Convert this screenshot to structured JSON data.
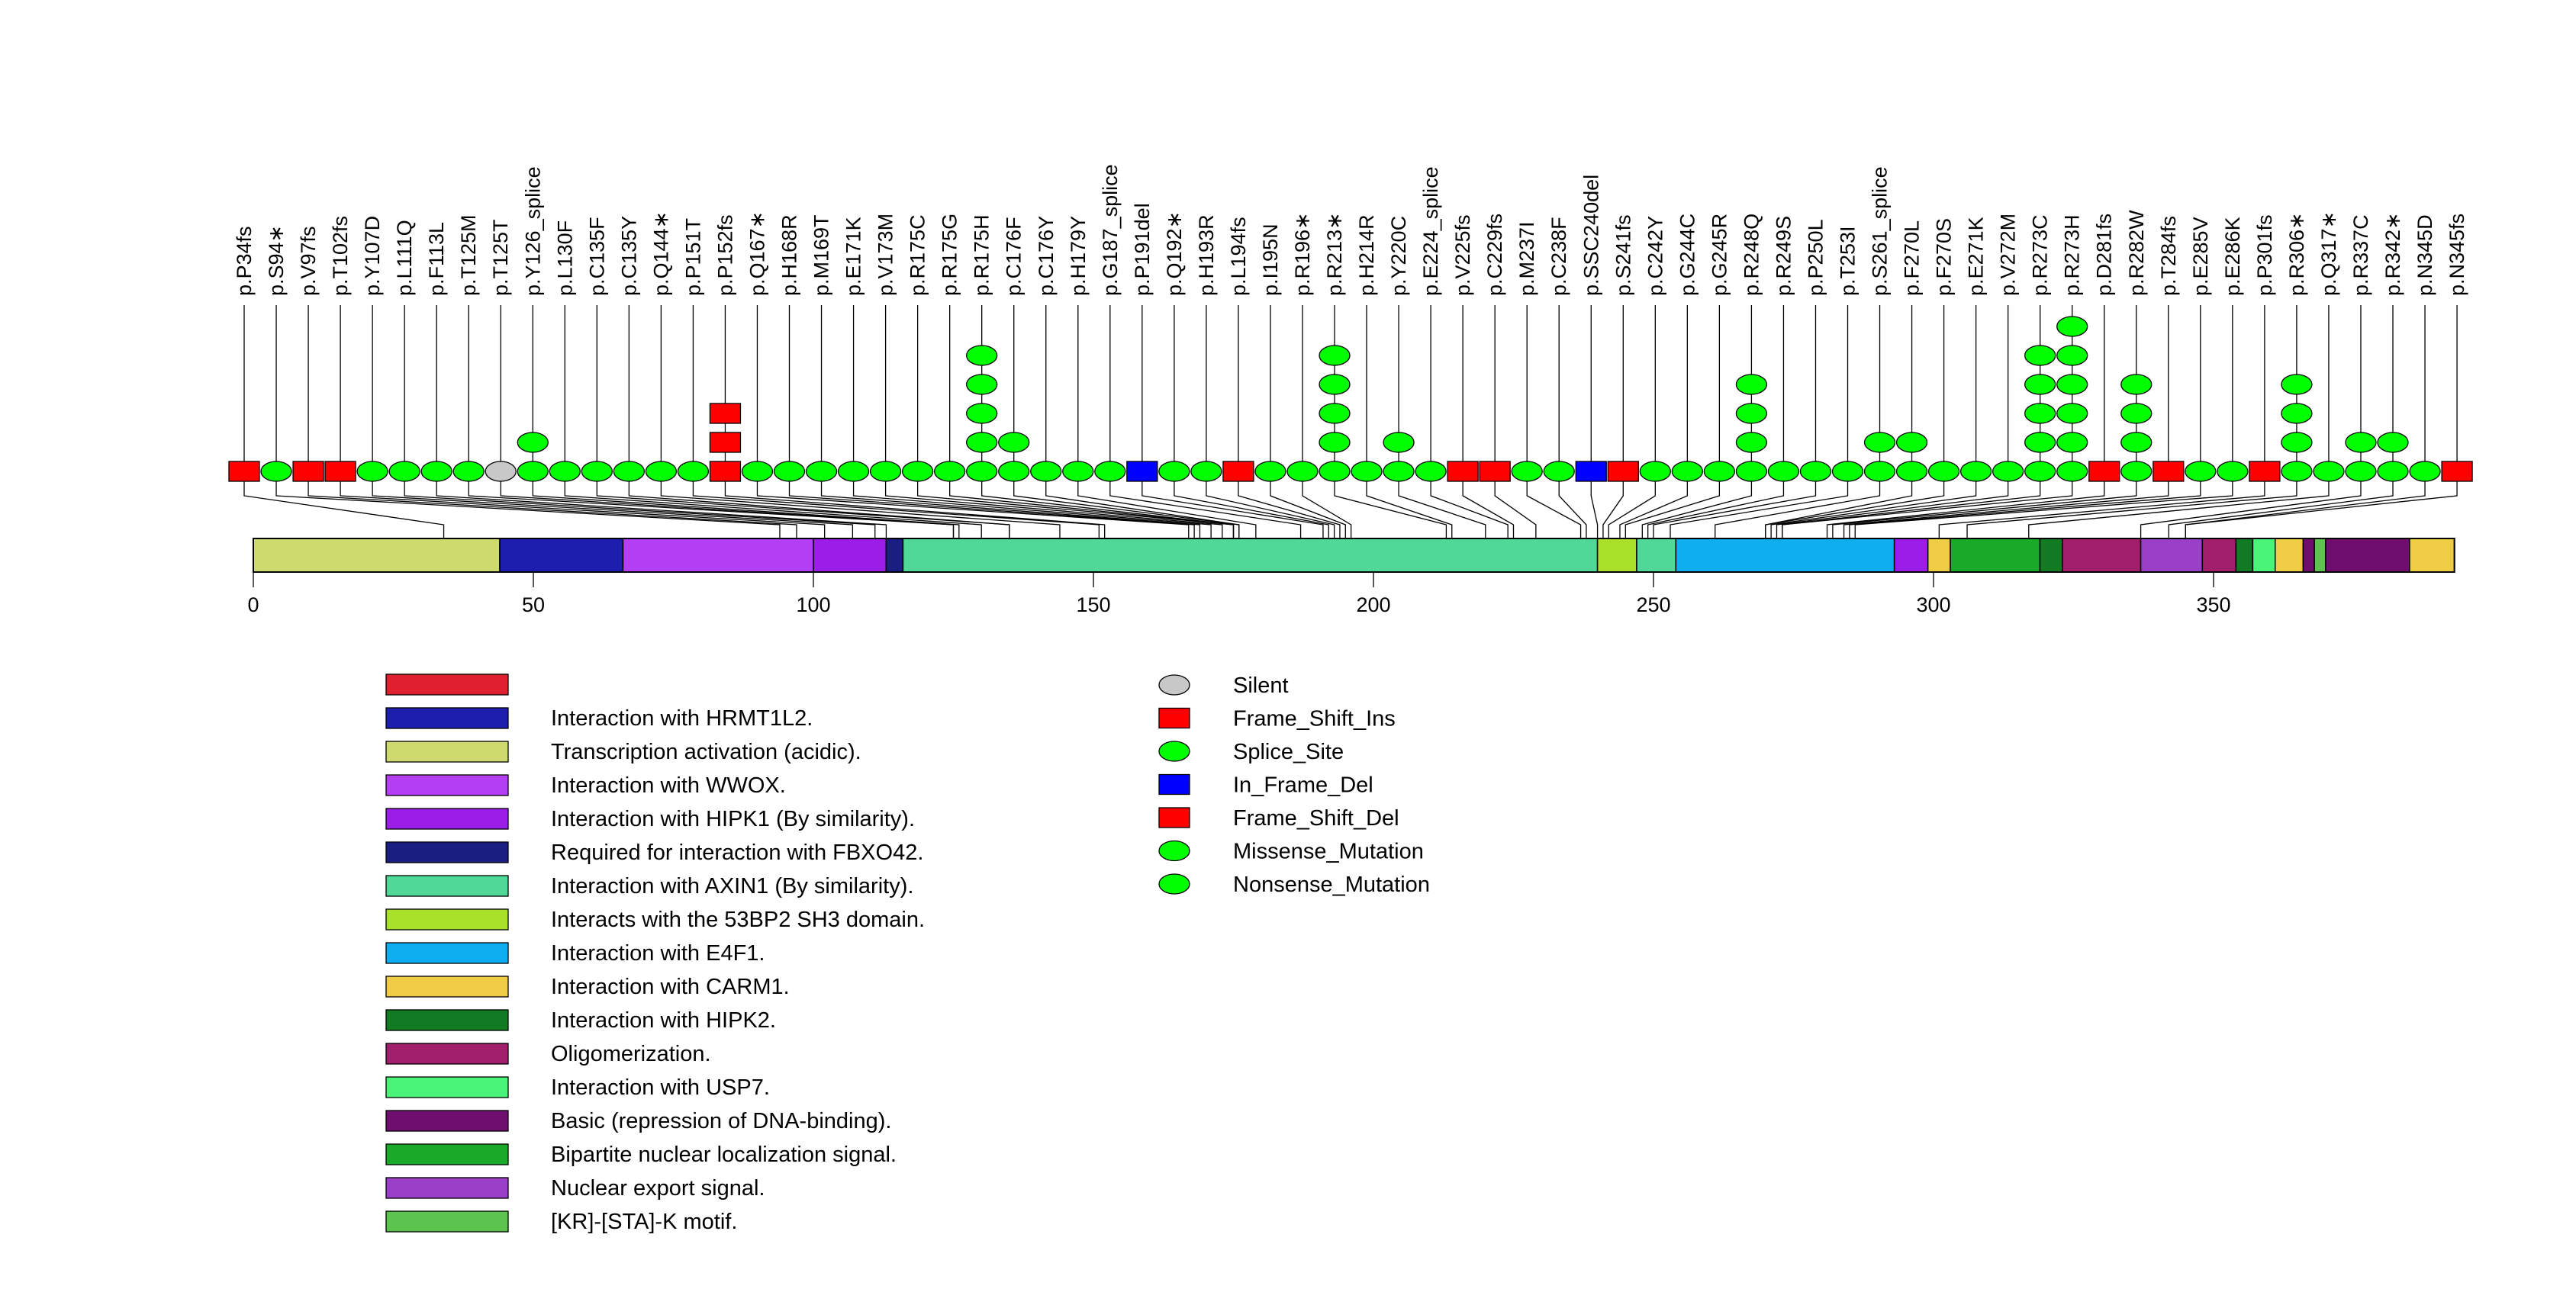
{
  "chart_data": {
    "type": "lollipop",
    "title": "",
    "protein_length": 393,
    "xlabel": "",
    "ylabel": "",
    "xlim": [
      0,
      393
    ],
    "x_ticks": [
      0,
      50,
      100,
      150,
      200,
      250,
      300,
      350
    ],
    "mutation_types": {
      "Silent": {
        "shape": "ellipse",
        "color": "#C8C8C8"
      },
      "Frame_Shift_Ins": {
        "shape": "square",
        "color": "#FF0000"
      },
      "Splice_Site": {
        "shape": "ellipse",
        "color": "#00FF00"
      },
      "In_Frame_Del": {
        "shape": "square",
        "color": "#0000FF"
      },
      "Frame_Shift_Del": {
        "shape": "square",
        "color": "#FF0000"
      },
      "Missense_Mutation": {
        "shape": "ellipse",
        "color": "#00FF00"
      },
      "Nonsense_Mutation": {
        "shape": "ellipse",
        "color": "#00FF00"
      }
    },
    "mutations": [
      {
        "label": "p.P34fs",
        "pos": 34,
        "type": "Frame_Shift_Del",
        "count": 1
      },
      {
        "label": "p.S94*",
        "pos": 94,
        "type": "Nonsense_Mutation",
        "count": 1
      },
      {
        "label": "p.V97fs",
        "pos": 97,
        "type": "Frame_Shift_Del",
        "count": 1
      },
      {
        "label": "p.T102fs",
        "pos": 102,
        "type": "Frame_Shift_Del",
        "count": 1
      },
      {
        "label": "p.Y107D",
        "pos": 107,
        "type": "Missense_Mutation",
        "count": 1
      },
      {
        "label": "p.L111Q",
        "pos": 111,
        "type": "Missense_Mutation",
        "count": 1
      },
      {
        "label": "p.F113L",
        "pos": 113,
        "type": "Missense_Mutation",
        "count": 1
      },
      {
        "label": "p.T125M",
        "pos": 125,
        "type": "Missense_Mutation",
        "count": 1
      },
      {
        "label": "p.T125T",
        "pos": 125,
        "type": "Silent",
        "count": 1
      },
      {
        "label": "p.Y126_splice",
        "pos": 126,
        "type": "Splice_Site",
        "count": 2
      },
      {
        "label": "p.L130F",
        "pos": 130,
        "type": "Missense_Mutation",
        "count": 1
      },
      {
        "label": "p.C135F",
        "pos": 135,
        "type": "Missense_Mutation",
        "count": 1
      },
      {
        "label": "p.C135Y",
        "pos": 135,
        "type": "Missense_Mutation",
        "count": 1
      },
      {
        "label": "p.Q144*",
        "pos": 144,
        "type": "Nonsense_Mutation",
        "count": 1
      },
      {
        "label": "p.P151T",
        "pos": 151,
        "type": "Missense_Mutation",
        "count": 1
      },
      {
        "label": "p.P152fs",
        "pos": 152,
        "type": "Frame_Shift_Ins",
        "count": 3
      },
      {
        "label": "p.Q167*",
        "pos": 167,
        "type": "Nonsense_Mutation",
        "count": 1
      },
      {
        "label": "p.H168R",
        "pos": 168,
        "type": "Missense_Mutation",
        "count": 1
      },
      {
        "label": "p.M169T",
        "pos": 169,
        "type": "Missense_Mutation",
        "count": 1
      },
      {
        "label": "p.E171K",
        "pos": 171,
        "type": "Missense_Mutation",
        "count": 1
      },
      {
        "label": "p.V173M",
        "pos": 173,
        "type": "Missense_Mutation",
        "count": 1
      },
      {
        "label": "p.R175C",
        "pos": 175,
        "type": "Missense_Mutation",
        "count": 1
      },
      {
        "label": "p.R175G",
        "pos": 175,
        "type": "Missense_Mutation",
        "count": 1
      },
      {
        "label": "p.R175H",
        "pos": 175,
        "type": "Missense_Mutation",
        "count": 5
      },
      {
        "label": "p.C176F",
        "pos": 176,
        "type": "Missense_Mutation",
        "count": 2
      },
      {
        "label": "p.C176Y",
        "pos": 176,
        "type": "Missense_Mutation",
        "count": 1
      },
      {
        "label": "p.H179Y",
        "pos": 179,
        "type": "Missense_Mutation",
        "count": 1
      },
      {
        "label": "p.G187_splice",
        "pos": 187,
        "type": "Splice_Site",
        "count": 1
      },
      {
        "label": "p.P191del",
        "pos": 191,
        "type": "In_Frame_Del",
        "count": 1
      },
      {
        "label": "p.Q192*",
        "pos": 192,
        "type": "Nonsense_Mutation",
        "count": 1
      },
      {
        "label": "p.H193R",
        "pos": 193,
        "type": "Missense_Mutation",
        "count": 1
      },
      {
        "label": "p.L194fs",
        "pos": 194,
        "type": "Frame_Shift_Del",
        "count": 1
      },
      {
        "label": "p.I195N",
        "pos": 195,
        "type": "Missense_Mutation",
        "count": 1
      },
      {
        "label": "p.R196*",
        "pos": 196,
        "type": "Nonsense_Mutation",
        "count": 1
      },
      {
        "label": "p.R213*",
        "pos": 213,
        "type": "Nonsense_Mutation",
        "count": 5
      },
      {
        "label": "p.H214R",
        "pos": 214,
        "type": "Missense_Mutation",
        "count": 1
      },
      {
        "label": "p.Y220C",
        "pos": 220,
        "type": "Missense_Mutation",
        "count": 2
      },
      {
        "label": "p.E224_splice",
        "pos": 224,
        "type": "Splice_Site",
        "count": 1
      },
      {
        "label": "p.V225fs",
        "pos": 225,
        "type": "Frame_Shift_Del",
        "count": 1
      },
      {
        "label": "p.C229fs",
        "pos": 229,
        "type": "Frame_Shift_Del",
        "count": 1
      },
      {
        "label": "p.M237I",
        "pos": 237,
        "type": "Missense_Mutation",
        "count": 1
      },
      {
        "label": "p.C238F",
        "pos": 238,
        "type": "Missense_Mutation",
        "count": 1
      },
      {
        "label": "p.SSC240del",
        "pos": 240,
        "type": "In_Frame_Del",
        "count": 1
      },
      {
        "label": "p.S241fs",
        "pos": 241,
        "type": "Frame_Shift_Del",
        "count": 1
      },
      {
        "label": "p.C242Y",
        "pos": 242,
        "type": "Missense_Mutation",
        "count": 1
      },
      {
        "label": "p.G244C",
        "pos": 244,
        "type": "Missense_Mutation",
        "count": 1
      },
      {
        "label": "p.G245R",
        "pos": 245,
        "type": "Missense_Mutation",
        "count": 1
      },
      {
        "label": "p.R248Q",
        "pos": 248,
        "type": "Missense_Mutation",
        "count": 4
      },
      {
        "label": "p.R249S",
        "pos": 249,
        "type": "Missense_Mutation",
        "count": 1
      },
      {
        "label": "p.P250L",
        "pos": 250,
        "type": "Missense_Mutation",
        "count": 1
      },
      {
        "label": "p.T253I",
        "pos": 253,
        "type": "Missense_Mutation",
        "count": 1
      },
      {
        "label": "p.S261_splice",
        "pos": 261,
        "type": "Splice_Site",
        "count": 2
      },
      {
        "label": "p.F270L",
        "pos": 270,
        "type": "Missense_Mutation",
        "count": 2
      },
      {
        "label": "p.F270S",
        "pos": 270,
        "type": "Missense_Mutation",
        "count": 1
      },
      {
        "label": "p.E271K",
        "pos": 271,
        "type": "Missense_Mutation",
        "count": 1
      },
      {
        "label": "p.V272M",
        "pos": 272,
        "type": "Missense_Mutation",
        "count": 1
      },
      {
        "label": "p.R273C",
        "pos": 273,
        "type": "Missense_Mutation",
        "count": 5
      },
      {
        "label": "p.R273H",
        "pos": 273,
        "type": "Missense_Mutation",
        "count": 6
      },
      {
        "label": "p.D281fs",
        "pos": 281,
        "type": "Frame_Shift_Del",
        "count": 1
      },
      {
        "label": "p.R282W",
        "pos": 282,
        "type": "Missense_Mutation",
        "count": 4
      },
      {
        "label": "p.T284fs",
        "pos": 284,
        "type": "Frame_Shift_Del",
        "count": 1
      },
      {
        "label": "p.E285V",
        "pos": 285,
        "type": "Missense_Mutation",
        "count": 1
      },
      {
        "label": "p.E286K",
        "pos": 286,
        "type": "Missense_Mutation",
        "count": 1
      },
      {
        "label": "p.P301fs",
        "pos": 301,
        "type": "Frame_Shift_Del",
        "count": 1
      },
      {
        "label": "p.R306*",
        "pos": 306,
        "type": "Nonsense_Mutation",
        "count": 4
      },
      {
        "label": "p.Q317*",
        "pos": 317,
        "type": "Nonsense_Mutation",
        "count": 1
      },
      {
        "label": "p.R337C",
        "pos": 337,
        "type": "Missense_Mutation",
        "count": 2
      },
      {
        "label": "p.R342*",
        "pos": 342,
        "type": "Nonsense_Mutation",
        "count": 2
      },
      {
        "label": "p.N345D",
        "pos": 345,
        "type": "Missense_Mutation",
        "count": 1
      },
      {
        "label": "p.N345fs",
        "pos": 345,
        "type": "Frame_Shift_Del",
        "count": 1
      }
    ],
    "domains": [
      {
        "name": "Transcription activation (acidic).",
        "start": 1,
        "end": 44,
        "color": "#CED96E"
      },
      {
        "name": "Interaction with HRMT1L2.",
        "start": 44,
        "end": 66,
        "color": "#1E1EAE"
      },
      {
        "name": "Interaction with WWOX.",
        "start": 66,
        "end": 100,
        "color": "#B43EF4"
      },
      {
        "name": "Interaction with HIPK1 (By similarity).",
        "start": 100,
        "end": 113,
        "color": "#9B1DE8"
      },
      {
        "name": "Required for interaction with FBXO42.",
        "start": 113,
        "end": 116,
        "color": "#1A1E80"
      },
      {
        "name": "Interaction with AXIN1 (By similarity).",
        "start": 116,
        "end": 240,
        "color": "#50D898"
      },
      {
        "name": "Interacts with the 53BP2 SH3 domain.",
        "start": 240,
        "end": 247,
        "color": "#A8E02A"
      },
      {
        "name": "Interaction with AXIN1 (By similarity).",
        "start": 247,
        "end": 254,
        "color": "#50D898"
      },
      {
        "name": "Interaction with E4F1.",
        "start": 254,
        "end": 293,
        "color": "#0EAEF0"
      },
      {
        "name": "Interaction with HIPK1 (By similarity).",
        "start": 293,
        "end": 299,
        "color": "#9B1DE8"
      },
      {
        "name": "Interaction with CARM1.",
        "start": 299,
        "end": 303,
        "color": "#F0CC44"
      },
      {
        "name": "Bipartite nuclear localization signal.",
        "start": 303,
        "end": 319,
        "color": "#1AAA2A"
      },
      {
        "name": "Interaction with HIPK2.",
        "start": 319,
        "end": 323,
        "color": "#127A22"
      },
      {
        "name": "Oligomerization.",
        "start": 323,
        "end": 337,
        "color": "#A01E6C"
      },
      {
        "name": "Nuclear export signal.",
        "start": 337,
        "end": 348,
        "color": "#9A40C8"
      },
      {
        "name": "Oligomerization.",
        "start": 348,
        "end": 354,
        "color": "#A01E6C"
      },
      {
        "name": "Interaction with HIPK2.",
        "start": 354,
        "end": 357,
        "color": "#127A22"
      },
      {
        "name": "Interaction with USP7.",
        "start": 357,
        "end": 361,
        "color": "#4AF478"
      },
      {
        "name": "Interaction with CARM1.",
        "start": 361,
        "end": 366,
        "color": "#F0CC44"
      },
      {
        "name": "Basic (repression of DNA-binding).",
        "start": 366,
        "end": 368,
        "color": "#700E70"
      },
      {
        "name": "[KR]-[STA]-K motif.",
        "start": 368,
        "end": 370,
        "color": "#5CC44E"
      },
      {
        "name": "Basic (repression of DNA-binding).",
        "start": 370,
        "end": 385,
        "color": "#700E70"
      },
      {
        "name": "Interaction with CARM1.",
        "start": 385,
        "end": 393,
        "color": "#F0CC44"
      }
    ],
    "domain_legend": [
      {
        "name": "",
        "color": "#E02030"
      },
      {
        "name": "Interaction with HRMT1L2.",
        "color": "#1E1EAE"
      },
      {
        "name": "Transcription activation (acidic).",
        "color": "#CED96E"
      },
      {
        "name": "Interaction with WWOX.",
        "color": "#B43EF4"
      },
      {
        "name": "Interaction with HIPK1 (By similarity).",
        "color": "#9B1DE8"
      },
      {
        "name": "Required for interaction with FBXO42.",
        "color": "#1A1E80"
      },
      {
        "name": "Interaction with AXIN1 (By similarity).",
        "color": "#50D898"
      },
      {
        "name": "Interacts with the 53BP2 SH3 domain.",
        "color": "#A8E02A"
      },
      {
        "name": "Interaction with E4F1.",
        "color": "#0EAEF0"
      },
      {
        "name": "Interaction with CARM1.",
        "color": "#F0CC44"
      },
      {
        "name": "Interaction with HIPK2.",
        "color": "#127A22"
      },
      {
        "name": "Oligomerization.",
        "color": "#A01E6C"
      },
      {
        "name": "Interaction with USP7.",
        "color": "#4AF478"
      },
      {
        "name": "Basic (repression of DNA-binding).",
        "color": "#700E70"
      },
      {
        "name": "Bipartite nuclear localization signal.",
        "color": "#1AAA2A"
      },
      {
        "name": "Nuclear export signal.",
        "color": "#9A40C8"
      },
      {
        "name": "[KR]-[STA]-K motif.",
        "color": "#5CC44E"
      }
    ],
    "mutation_legend": [
      {
        "name": "Silent",
        "shape": "ellipse",
        "color": "#C8C8C8"
      },
      {
        "name": "Frame_Shift_Ins",
        "shape": "square",
        "color": "#FF0000"
      },
      {
        "name": "Splice_Site",
        "shape": "ellipse",
        "color": "#00FF00"
      },
      {
        "name": "In_Frame_Del",
        "shape": "square",
        "color": "#0000FF"
      },
      {
        "name": "Frame_Shift_Del",
        "shape": "square",
        "color": "#FF0000"
      },
      {
        "name": "Missense_Mutation",
        "shape": "ellipse",
        "color": "#00FF00"
      },
      {
        "name": "Nonsense_Mutation",
        "shape": "ellipse",
        "color": "#00FF00"
      }
    ]
  }
}
